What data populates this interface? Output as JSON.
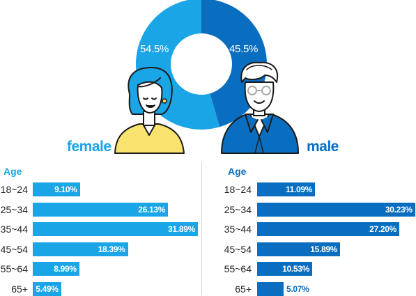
{
  "colors": {
    "female": "#1aa5e6",
    "male": "#0a6ec0",
    "skin": "#ffffff",
    "female_shirt": "#f9e26d",
    "outline": "#1a1a1a"
  },
  "icons": {
    "female": "female-avatar-icon",
    "male": "male-avatar-icon"
  },
  "labels": {
    "female": "female",
    "male": "male",
    "age_header": "Age"
  },
  "chart_data": [
    {
      "type": "pie",
      "donut": true,
      "slices": [
        {
          "label": "male",
          "value": 45.5,
          "display": "45.5%"
        },
        {
          "label": "female",
          "value": 54.5,
          "display": "54.5%"
        }
      ]
    },
    {
      "type": "bar",
      "orientation": "horizontal",
      "group": "female",
      "ylabel": "Age",
      "categories": [
        "18~24",
        "25~34",
        "35~44",
        "45~54",
        "55~64",
        "65+"
      ],
      "values": [
        9.1,
        26.13,
        31.89,
        18.39,
        8.99,
        5.49
      ],
      "value_labels": [
        "9.10%",
        "26.13%",
        "31.89%",
        "18.39%",
        "8.99%",
        "5.49%"
      ]
    },
    {
      "type": "bar",
      "orientation": "horizontal",
      "group": "male",
      "ylabel": "Age",
      "categories": [
        "18~24",
        "25~34",
        "35~44",
        "45~54",
        "55~64",
        "65+"
      ],
      "values": [
        11.09,
        30.23,
        27.2,
        15.89,
        10.53,
        5.07
      ],
      "value_labels": [
        "11.09%",
        "30.23%",
        "27.20%",
        "15.89%",
        "10.53%",
        "5.07%"
      ]
    }
  ]
}
